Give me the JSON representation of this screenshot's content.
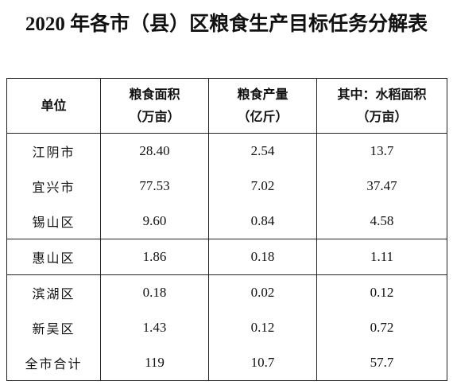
{
  "title": "2020 年各市（县）区粮食生产目标任务分解表",
  "table": {
    "header": [
      [
        "单位"
      ],
      [
        "粮食面积",
        "（万亩）"
      ],
      [
        "粮食产量",
        "（亿斤）"
      ],
      [
        "其中：水稻面积",
        "（万亩）"
      ]
    ],
    "rows": [
      [
        "江阴市",
        "28.40",
        "2.54",
        "13.7"
      ],
      [
        "宜兴市",
        "77.53",
        "7.02",
        "37.47"
      ],
      [
        "锡山区",
        "9.60",
        "0.84",
        "4.58"
      ],
      [
        "惠山区",
        "1.86",
        "0.18",
        "1.11"
      ],
      [
        "滨湖区",
        "0.18",
        "0.02",
        "0.12"
      ],
      [
        "新吴区",
        "1.43",
        "0.12",
        "0.72"
      ],
      [
        "全市合计",
        "119",
        "10.7",
        "57.7"
      ]
    ]
  }
}
